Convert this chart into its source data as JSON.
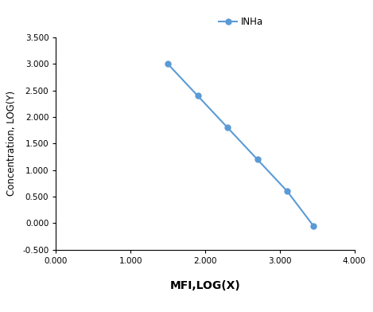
{
  "x": [
    1.5,
    1.9,
    2.3,
    2.7,
    3.1,
    3.45
  ],
  "y": [
    3.0,
    2.4,
    1.8,
    1.2,
    0.6,
    -0.05
  ],
  "line_color": "#5B9BD5",
  "marker_color": "#5B9BD5",
  "marker_style": "o",
  "marker_size": 5,
  "line_width": 1.5,
  "legend_label": "INHa",
  "xlabel": "MFI,LOG(X)",
  "ylabel": "Concentration, LOG(Y)",
  "xlim": [
    0.0,
    4.0
  ],
  "ylim": [
    -0.5,
    3.5
  ],
  "xticks": [
    0.0,
    1.0,
    2.0,
    3.0,
    4.0
  ],
  "yticks": [
    -0.5,
    0.0,
    0.5,
    1.0,
    1.5,
    2.0,
    2.5,
    3.0,
    3.5
  ],
  "xlabel_fontsize": 10,
  "ylabel_fontsize": 8.5,
  "tick_fontsize": 7.5,
  "legend_fontsize": 8.5,
  "background_color": "#ffffff"
}
